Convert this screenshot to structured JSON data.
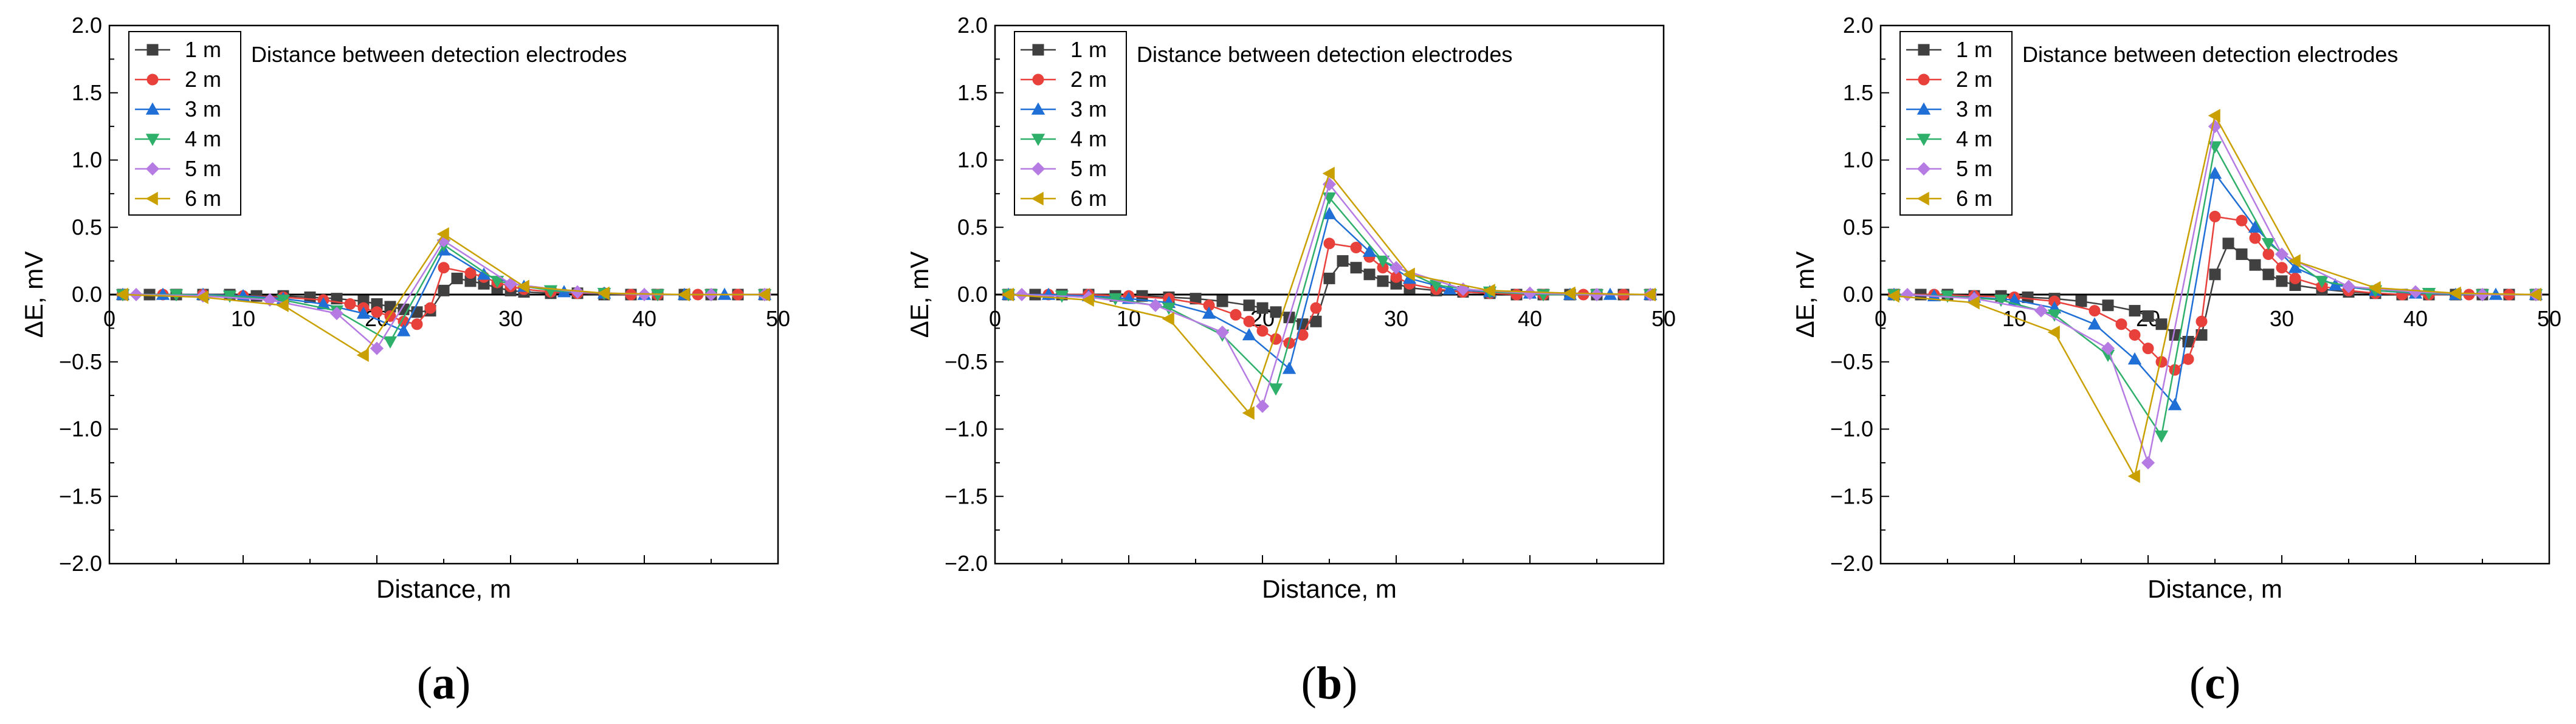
{
  "chart_data": [
    {
      "type": "line",
      "panel_label": "(a)",
      "caption_paren_open": "(",
      "caption_letter": "a",
      "caption_paren_close": ")",
      "title": "",
      "annotation": "Distance between detection electrodes",
      "xlabel": "Distance, m",
      "ylabel": "ΔE, mV",
      "xlim": [
        0,
        50
      ],
      "ylim": [
        -2.0,
        2.0
      ],
      "xticks": [
        0,
        10,
        20,
        30,
        40,
        50
      ],
      "yticks": [
        -2.0,
        -1.5,
        -1.0,
        -0.5,
        0.0,
        0.5,
        1.0,
        1.5,
        2.0
      ],
      "ytick_labels": [
        "−2.0",
        "−1.5",
        "−1.0",
        "−0.5",
        "0.0",
        "0.5",
        "1.0",
        "1.5",
        "2.0"
      ],
      "legend_position": "top-left",
      "series": [
        {
          "name": "1 m",
          "marker": "square",
          "color": "#404040",
          "x": [
            1,
            3,
            5,
            7,
            9,
            11,
            13,
            15,
            17,
            19,
            20,
            21,
            22,
            23,
            24,
            25,
            26,
            27,
            28,
            29,
            30,
            31,
            33,
            35,
            37,
            39,
            41,
            43,
            45,
            47,
            49
          ],
          "y": [
            0,
            0,
            0,
            0,
            0,
            -0.01,
            -0.01,
            -0.02,
            -0.03,
            -0.05,
            -0.07,
            -0.09,
            -0.11,
            -0.13,
            -0.12,
            0.03,
            0.12,
            0.1,
            0.08,
            0.05,
            0.03,
            0.02,
            0.01,
            0.01,
            0,
            0,
            0,
            0,
            0,
            0,
            0
          ]
        },
        {
          "name": "2 m",
          "marker": "circle",
          "color": "#e8403a",
          "x": [
            1,
            4,
            7,
            10,
            13,
            16,
            18,
            19,
            20,
            21,
            22,
            23,
            24,
            25,
            27,
            28,
            29,
            30,
            31,
            33,
            35,
            37,
            39,
            41,
            44,
            47,
            49
          ],
          "y": [
            0,
            0,
            0,
            -0.01,
            -0.02,
            -0.04,
            -0.07,
            -0.1,
            -0.13,
            -0.16,
            -0.2,
            -0.22,
            -0.1,
            0.2,
            0.16,
            0.13,
            0.09,
            0.06,
            0.04,
            0.02,
            0.01,
            0.01,
            0,
            0,
            0,
            0,
            0
          ]
        },
        {
          "name": "3 m",
          "marker": "triangle-up",
          "color": "#1f6fd6",
          "x": [
            1,
            4,
            7,
            10,
            13,
            16,
            19,
            22,
            25,
            28,
            31,
            34,
            37,
            40,
            43,
            46,
            49
          ],
          "y": [
            0,
            0,
            0,
            -0.01,
            -0.03,
            -0.07,
            -0.14,
            -0.27,
            0.33,
            0.15,
            0.06,
            0.02,
            0.01,
            0,
            0,
            0,
            0
          ]
        },
        {
          "name": "4 m",
          "marker": "triangle-down",
          "color": "#2fb06a",
          "x": [
            1,
            5,
            9,
            13,
            17,
            21,
            25,
            29,
            33,
            37,
            41,
            45,
            49
          ],
          "y": [
            0,
            0,
            -0.01,
            -0.04,
            -0.12,
            -0.35,
            0.37,
            0.1,
            0.03,
            0.01,
            0,
            0,
            0
          ]
        },
        {
          "name": "5 m",
          "marker": "diamond",
          "color": "#b57be3",
          "x": [
            2,
            7,
            12,
            17,
            20,
            25,
            30,
            35,
            40,
            45,
            49
          ],
          "y": [
            0,
            -0.01,
            -0.04,
            -0.14,
            -0.4,
            0.4,
            0.08,
            0.02,
            0,
            0,
            0
          ]
        },
        {
          "name": "6 m",
          "marker": "triangle-left",
          "color": "#c9a000",
          "x": [
            1,
            7,
            13,
            19,
            25,
            31,
            37,
            43,
            49
          ],
          "y": [
            0,
            -0.02,
            -0.08,
            -0.45,
            0.45,
            0.06,
            0.01,
            0,
            0
          ]
        }
      ]
    },
    {
      "type": "line",
      "panel_label": "(b)",
      "caption_paren_open": "(",
      "caption_letter": "b",
      "caption_paren_close": ")",
      "title": "",
      "annotation": "Distance between detection electrodes",
      "xlabel": "Distance, m",
      "ylabel": "ΔE, mV",
      "xlim": [
        0,
        50
      ],
      "ylim": [
        -2.0,
        2.0
      ],
      "xticks": [
        0,
        10,
        20,
        30,
        40,
        50
      ],
      "yticks": [
        -2.0,
        -1.5,
        -1.0,
        -0.5,
        0.0,
        0.5,
        1.0,
        1.5,
        2.0
      ],
      "ytick_labels": [
        "−2.0",
        "−1.5",
        "−1.0",
        "−0.5",
        "0.0",
        "0.5",
        "1.0",
        "1.5",
        "2.0"
      ],
      "legend_position": "top-left",
      "series": [
        {
          "name": "1 m",
          "marker": "square",
          "color": "#404040",
          "x": [
            1,
            3,
            5,
            7,
            9,
            11,
            13,
            15,
            17,
            19,
            20,
            21,
            22,
            23,
            24,
            25,
            26,
            27,
            28,
            29,
            30,
            31,
            33,
            35,
            37,
            39,
            41,
            43,
            45,
            47,
            49
          ],
          "y": [
            0,
            0,
            0,
            0,
            -0.01,
            -0.01,
            -0.02,
            -0.03,
            -0.05,
            -0.08,
            -0.1,
            -0.13,
            -0.17,
            -0.22,
            -0.2,
            0.12,
            0.25,
            0.2,
            0.15,
            0.1,
            0.08,
            0.05,
            0.03,
            0.02,
            0.01,
            0,
            0,
            0,
            0,
            0,
            0
          ]
        },
        {
          "name": "2 m",
          "marker": "circle",
          "color": "#e8403a",
          "x": [
            1,
            4,
            7,
            10,
            13,
            16,
            18,
            19,
            20,
            21,
            22,
            23,
            24,
            25,
            27,
            28,
            29,
            30,
            31,
            33,
            35,
            37,
            39,
            41,
            44,
            47,
            49
          ],
          "y": [
            0,
            0,
            0,
            -0.01,
            -0.03,
            -0.08,
            -0.15,
            -0.2,
            -0.27,
            -0.33,
            -0.36,
            -0.3,
            -0.1,
            0.38,
            0.35,
            0.28,
            0.2,
            0.13,
            0.08,
            0.04,
            0.02,
            0.01,
            0,
            0,
            0,
            0,
            0
          ]
        },
        {
          "name": "3 m",
          "marker": "triangle-up",
          "color": "#1f6fd6",
          "x": [
            1,
            4,
            7,
            10,
            13,
            16,
            19,
            22,
            25,
            28,
            31,
            34,
            37,
            40,
            43,
            46,
            49
          ],
          "y": [
            0,
            0,
            -0.01,
            -0.03,
            -0.06,
            -0.14,
            -0.3,
            -0.55,
            0.6,
            0.32,
            0.12,
            0.04,
            0.02,
            0.01,
            0,
            0,
            0
          ]
        },
        {
          "name": "4 m",
          "marker": "triangle-down",
          "color": "#2fb06a",
          "x": [
            1,
            5,
            9,
            13,
            17,
            21,
            25,
            29,
            33,
            37,
            41,
            45,
            49
          ],
          "y": [
            0,
            -0.01,
            -0.03,
            -0.1,
            -0.3,
            -0.7,
            0.72,
            0.25,
            0.07,
            0.02,
            0,
            0,
            0
          ]
        },
        {
          "name": "5 m",
          "marker": "diamond",
          "color": "#b57be3",
          "x": [
            2,
            7,
            12,
            17,
            20,
            25,
            30,
            35,
            40,
            45,
            49
          ],
          "y": [
            0,
            -0.02,
            -0.08,
            -0.28,
            -0.83,
            0.82,
            0.2,
            0.04,
            0.01,
            0,
            0
          ]
        },
        {
          "name": "6 m",
          "marker": "triangle-left",
          "color": "#c9a000",
          "x": [
            1,
            7,
            13,
            19,
            25,
            31,
            37,
            43,
            49
          ],
          "y": [
            0,
            -0.04,
            -0.18,
            -0.88,
            0.9,
            0.15,
            0.03,
            0.01,
            0
          ]
        }
      ]
    },
    {
      "type": "line",
      "panel_label": "(c)",
      "caption_paren_open": "(",
      "caption_letter": "c",
      "caption_paren_close": ")",
      "title": "",
      "annotation": "Distance between detection electrodes",
      "xlabel": "Distance, m",
      "ylabel": "ΔE, mV",
      "xlim": [
        0,
        50
      ],
      "ylim": [
        -2.0,
        2.0
      ],
      "xticks": [
        0,
        10,
        20,
        30,
        40,
        50
      ],
      "yticks": [
        -2.0,
        -1.5,
        -1.0,
        -0.5,
        0.0,
        0.5,
        1.0,
        1.5,
        2.0
      ],
      "ytick_labels": [
        "−2.0",
        "−1.5",
        "−1.0",
        "−0.5",
        "0.0",
        "0.5",
        "1.0",
        "1.5",
        "2.0"
      ],
      "legend_position": "top-left",
      "series": [
        {
          "name": "1 m",
          "marker": "square",
          "color": "#404040",
          "x": [
            1,
            3,
            5,
            7,
            9,
            11,
            13,
            15,
            17,
            19,
            20,
            21,
            22,
            23,
            24,
            25,
            26,
            27,
            28,
            29,
            30,
            31,
            33,
            35,
            37,
            39,
            41,
            43,
            45,
            47,
            49
          ],
          "y": [
            0,
            0,
            0,
            -0.01,
            -0.01,
            -0.02,
            -0.03,
            -0.05,
            -0.08,
            -0.12,
            -0.16,
            -0.22,
            -0.3,
            -0.35,
            -0.3,
            0.15,
            0.38,
            0.3,
            0.22,
            0.15,
            0.1,
            0.07,
            0.04,
            0.02,
            0.01,
            0,
            0,
            0,
            0,
            0,
            0
          ]
        },
        {
          "name": "2 m",
          "marker": "circle",
          "color": "#e8403a",
          "x": [
            1,
            4,
            7,
            10,
            13,
            16,
            18,
            19,
            20,
            21,
            22,
            23,
            24,
            25,
            27,
            28,
            29,
            30,
            31,
            33,
            35,
            37,
            39,
            41,
            44,
            47,
            49
          ],
          "y": [
            0,
            0,
            -0.01,
            -0.02,
            -0.05,
            -0.12,
            -0.22,
            -0.3,
            -0.4,
            -0.5,
            -0.56,
            -0.48,
            -0.2,
            0.58,
            0.55,
            0.42,
            0.3,
            0.2,
            0.12,
            0.06,
            0.03,
            0.01,
            0,
            0,
            0,
            0,
            0
          ]
        },
        {
          "name": "3 m",
          "marker": "triangle-up",
          "color": "#1f6fd6",
          "x": [
            1,
            4,
            7,
            10,
            13,
            16,
            19,
            22,
            25,
            28,
            31,
            34,
            37,
            40,
            43,
            46,
            49
          ],
          "y": [
            0,
            -0.01,
            -0.02,
            -0.04,
            -0.1,
            -0.22,
            -0.48,
            -0.82,
            0.9,
            0.5,
            0.2,
            0.07,
            0.03,
            0.01,
            0,
            0,
            0
          ]
        },
        {
          "name": "4 m",
          "marker": "triangle-down",
          "color": "#2fb06a",
          "x": [
            1,
            5,
            9,
            13,
            17,
            21,
            25,
            29,
            33,
            37,
            41,
            45,
            49
          ],
          "y": [
            0,
            -0.01,
            -0.04,
            -0.15,
            -0.45,
            -1.05,
            1.1,
            0.38,
            0.1,
            0.03,
            0.01,
            0,
            0
          ]
        },
        {
          "name": "5 m",
          "marker": "diamond",
          "color": "#b57be3",
          "x": [
            2,
            7,
            12,
            17,
            20,
            25,
            30,
            35,
            40,
            45,
            49
          ],
          "y": [
            0,
            -0.03,
            -0.12,
            -0.4,
            -1.25,
            1.25,
            0.3,
            0.06,
            0.02,
            0,
            0
          ]
        },
        {
          "name": "6 m",
          "marker": "triangle-left",
          "color": "#c9a000",
          "x": [
            1,
            7,
            13,
            19,
            25,
            31,
            37,
            43,
            49
          ],
          "y": [
            -0.01,
            -0.06,
            -0.28,
            -1.35,
            1.33,
            0.25,
            0.05,
            0.01,
            0
          ]
        }
      ]
    }
  ]
}
